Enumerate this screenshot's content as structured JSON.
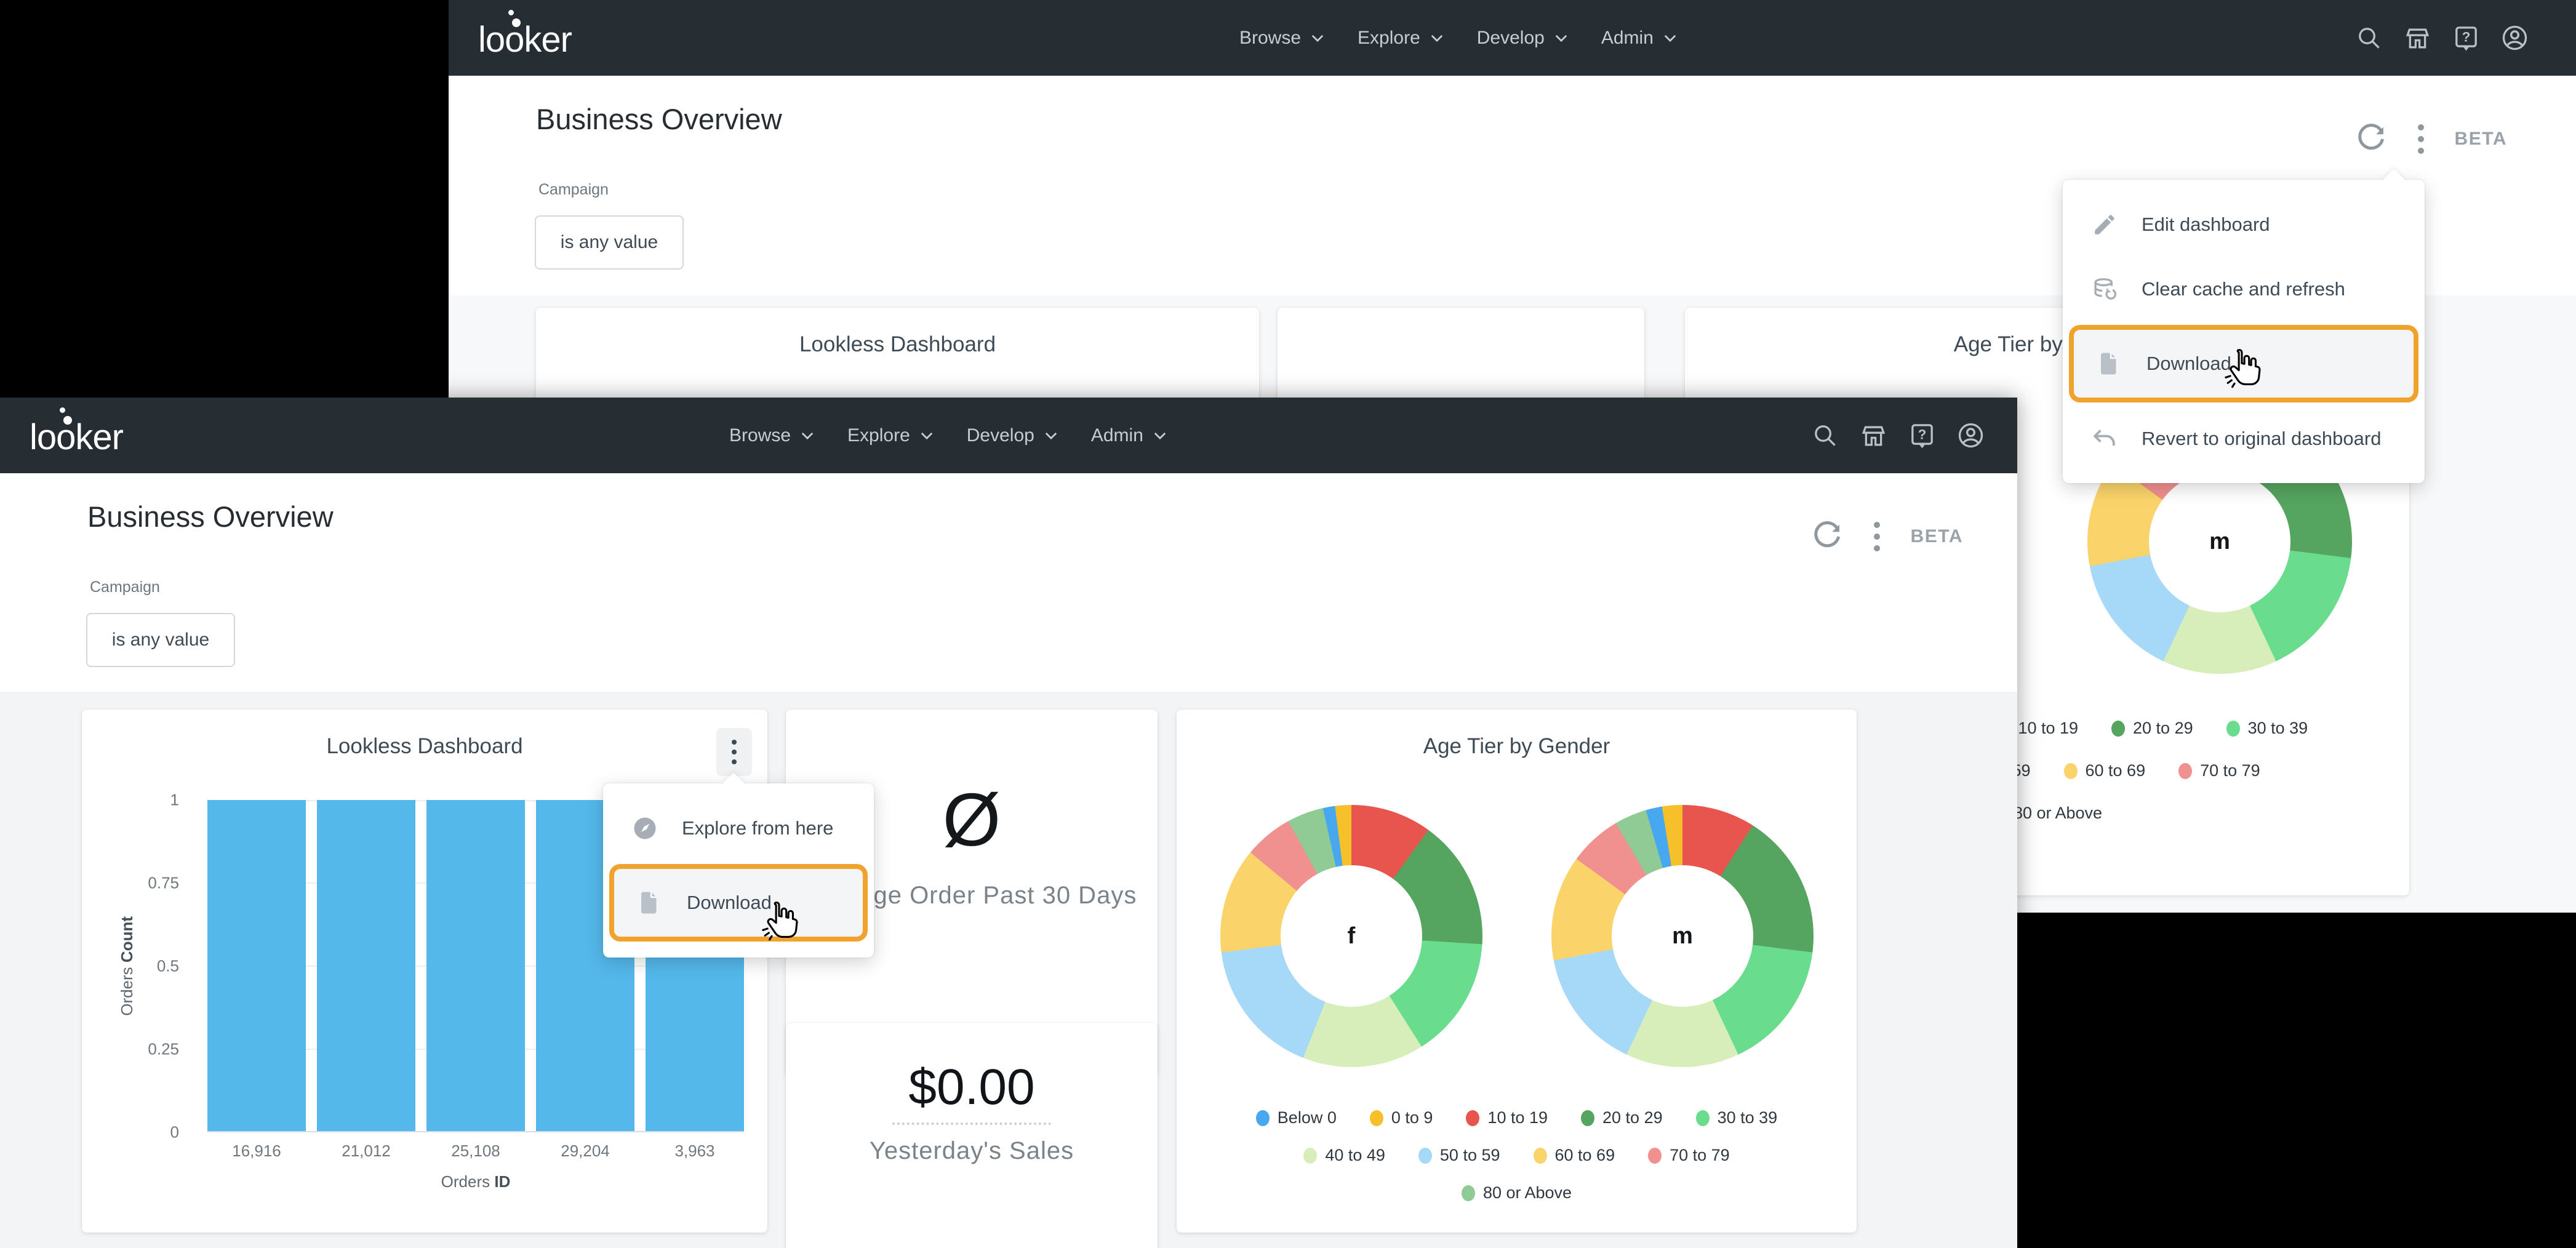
{
  "brand": {
    "logo_text": "looker"
  },
  "nav": {
    "items": [
      {
        "label": "Browse"
      },
      {
        "label": "Explore"
      },
      {
        "label": "Develop"
      },
      {
        "label": "Admin"
      }
    ],
    "icon_names": [
      "search-icon",
      "marketplace-icon",
      "help-icon",
      "account-icon"
    ]
  },
  "header": {
    "title": "Business Overview",
    "beta": "BETA"
  },
  "filters": {
    "label": "Campaign",
    "value": "is any value"
  },
  "bg_window": {
    "tile1_title": "Lookless Dashboard",
    "menu_items": [
      {
        "icon": "pencil",
        "label": "Edit dashboard",
        "highlighted": false
      },
      {
        "icon": "cache",
        "label": "Clear cache and refresh",
        "highlighted": false
      },
      {
        "icon": "file",
        "label": "Download",
        "highlighted": true
      },
      {
        "icon": "undo",
        "label": "Revert to original dashboard",
        "highlighted": false
      }
    ]
  },
  "fg_window": {
    "tile_menu_items": [
      {
        "icon": "compass",
        "label": "Explore from here",
        "highlighted": false
      },
      {
        "icon": "file",
        "label": "Download",
        "highlighted": true
      }
    ],
    "kpi_null": {
      "symbol": "Ø",
      "label": "Average Order Past 30 Days"
    },
    "kpi_sales": {
      "value": "$0.00",
      "label": "Yesterday's Sales"
    }
  },
  "accent": {
    "highlight_orange": "#F0A32C",
    "navbar_dark": "#262D33"
  },
  "chart_data": [
    {
      "type": "bar",
      "title": "Lookless Dashboard",
      "categories": [
        "16,916",
        "21,012",
        "25,108",
        "29,204",
        "3,963"
      ],
      "values": [
        1,
        1,
        1,
        1,
        1
      ],
      "xlabel_prefix": "Orders ",
      "xlabel_bold": "ID",
      "ylabel_prefix": "Orders ",
      "ylabel_bold": "Count",
      "ylim": [
        0,
        1
      ],
      "yticks": [
        "1",
        "0.75",
        "0.5",
        "0.25",
        "0"
      ],
      "bar_color": "#54B8EB",
      "grid": true,
      "legend_position": "none"
    },
    {
      "type": "pie",
      "title": "Age Tier by Gender",
      "legend_position": "bottom",
      "donuts": [
        {
          "center_label": "f",
          "slices": [
            {
              "label": "10 to 19",
              "value": 10
            },
            {
              "label": "20 to 29",
              "value": 16
            },
            {
              "label": "30 to 39",
              "value": 15
            },
            {
              "label": "40 to 49",
              "value": 15
            },
            {
              "label": "50 to 59",
              "value": 17
            },
            {
              "label": "60 to 69",
              "value": 13
            },
            {
              "label": "70 to 79",
              "value": 6
            },
            {
              "label": "80 or Above",
              "value": 4.5
            },
            {
              "label": "Below 0",
              "value": 1.5
            },
            {
              "label": "0 to 9",
              "value": 2
            }
          ]
        },
        {
          "center_label": "m",
          "slices": [
            {
              "label": "10 to 19",
              "value": 9
            },
            {
              "label": "20 to 29",
              "value": 18
            },
            {
              "label": "30 to 39",
              "value": 16
            },
            {
              "label": "40 to 49",
              "value": 14
            },
            {
              "label": "50 to 59",
              "value": 15
            },
            {
              "label": "60 to 69",
              "value": 13
            },
            {
              "label": "70 to 79",
              "value": 6.5
            },
            {
              "label": "80 or Above",
              "value": 4
            },
            {
              "label": "Below 0",
              "value": 2
            },
            {
              "label": "0 to 9",
              "value": 2.5
            }
          ]
        }
      ],
      "legend": [
        [
          "Below 0",
          "#47A8EF"
        ],
        [
          "0 to 9",
          "#F6C02B"
        ],
        [
          "10 to 19",
          "#E8544E"
        ],
        [
          "20 to 29",
          "#55A45F"
        ],
        [
          "30 to 39",
          "#69DD8D"
        ],
        [
          "40 to 49",
          "#D7EDBA"
        ],
        [
          "50 to 59",
          "#A6D9F8"
        ],
        [
          "60 to 69",
          "#FAD46B"
        ],
        [
          "70 to 79",
          "#F0908F"
        ],
        [
          "80 or Above",
          "#90CB96"
        ]
      ]
    },
    {
      "type": "pie",
      "title": "Age Tier by Gender",
      "legend_position": "bottom",
      "donuts": [
        {
          "center_label": "m",
          "slices": [
            {
              "label": "10 to 19",
              "value": 9
            },
            {
              "label": "20 to 29",
              "value": 18
            },
            {
              "label": "30 to 39",
              "value": 16
            },
            {
              "label": "40 to 49",
              "value": 14
            },
            {
              "label": "50 to 59",
              "value": 15
            },
            {
              "label": "60 to 69",
              "value": 13
            },
            {
              "label": "70 to 79",
              "value": 6.5
            },
            {
              "label": "80 or Above",
              "value": 4
            },
            {
              "label": "Below 0",
              "value": 2
            },
            {
              "label": "0 to 9",
              "value": 2.5
            }
          ]
        }
      ],
      "legend": [
        [
          "Below 0",
          "#47A8EF"
        ],
        [
          "0 to 9",
          "#F6C02B"
        ],
        [
          "10 to 19",
          "#E8544E"
        ],
        [
          "20 to 29",
          "#55A45F"
        ],
        [
          "30 to 39",
          "#69DD8D"
        ],
        [
          "40 to 49",
          "#D7EDBA"
        ],
        [
          "50 to 59",
          "#A6D9F8"
        ],
        [
          "60 to 69",
          "#FAD46B"
        ],
        [
          "70 to 79",
          "#F0908F"
        ],
        [
          "80 or Above",
          "#90CB96"
        ]
      ]
    }
  ]
}
